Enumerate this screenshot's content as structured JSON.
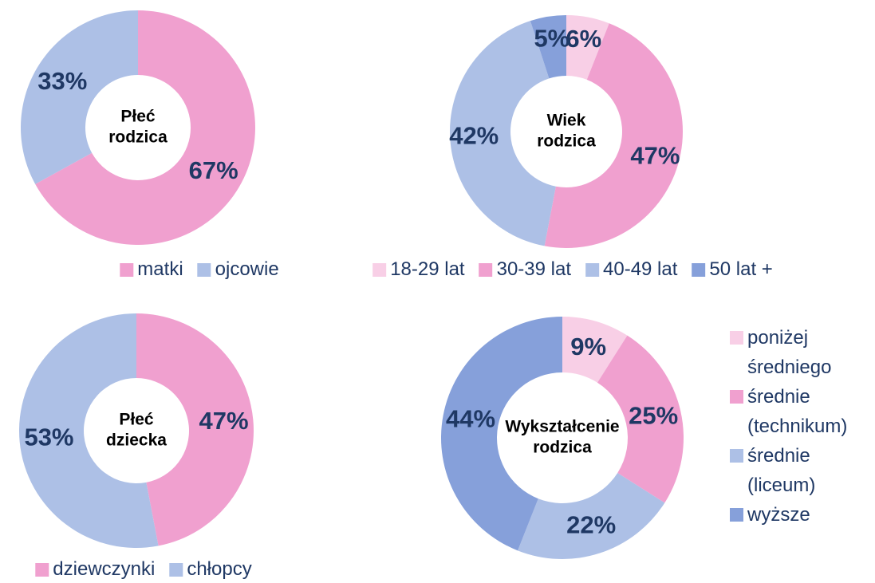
{
  "chart_data": [
    {
      "type": "donut",
      "center": [
        "Płeć",
        "rodzica"
      ],
      "categories": [
        "matki",
        "ojcowie"
      ],
      "values": [
        67,
        33
      ],
      "value_labels": [
        "67%",
        "33%"
      ],
      "colors": [
        "#f0a0cf",
        "#adc0e6"
      ],
      "legend": "bottom"
    },
    {
      "type": "donut",
      "center": [
        "Wiek",
        "rodzica"
      ],
      "categories": [
        "18-29 lat",
        "30-39 lat",
        "40-49 lat",
        "50 lat +"
      ],
      "values": [
        6,
        47,
        42,
        5
      ],
      "value_labels": [
        "6%",
        "47%",
        "42%",
        "5%"
      ],
      "colors": [
        "#f8cfe6",
        "#f0a0cf",
        "#adc0e6",
        "#86a0da"
      ],
      "legend": "bottom"
    },
    {
      "type": "donut",
      "center": [
        "Płeć",
        "dziecka"
      ],
      "categories": [
        "dziewczynki",
        "chłopcy"
      ],
      "values": [
        47,
        53
      ],
      "value_labels": [
        "47%",
        "53%"
      ],
      "colors": [
        "#f0a0cf",
        "#adc0e6"
      ],
      "legend": "bottom"
    },
    {
      "type": "donut",
      "center": [
        "Wykształcenie",
        "rodzica"
      ],
      "categories": [
        "poniżej średniego",
        "średnie (technikum)",
        "średnie (liceum)",
        "wyższe"
      ],
      "values": [
        9,
        25,
        22,
        44
      ],
      "value_labels": [
        "9%",
        "25%",
        "22%",
        "44%"
      ],
      "colors": [
        "#f8cfe6",
        "#f0a0cf",
        "#adc0e6",
        "#86a0da"
      ],
      "legend": "right"
    }
  ]
}
